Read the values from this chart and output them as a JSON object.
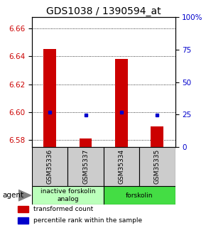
{
  "title": "GDS1038 / 1390594_at",
  "samples": [
    "GSM35336",
    "GSM35337",
    "GSM35334",
    "GSM35335"
  ],
  "red_values": [
    6.645,
    6.581,
    6.638,
    6.59
  ],
  "blue_values": [
    6.6,
    6.598,
    6.6,
    6.598
  ],
  "ylim_left": [
    6.575,
    6.668
  ],
  "ylim_right": [
    0,
    100
  ],
  "yticks_left": [
    6.58,
    6.6,
    6.62,
    6.64,
    6.66
  ],
  "yticks_right": [
    0,
    25,
    50,
    75,
    100
  ],
  "ytick_labels_right": [
    "0",
    "25",
    "50",
    "75",
    "100%"
  ],
  "groups": [
    {
      "label": "inactive forskolin\nanalog",
      "samples": [
        0,
        1
      ],
      "color": "#bbffbb"
    },
    {
      "label": "forskolin",
      "samples": [
        2,
        3
      ],
      "color": "#44dd44"
    }
  ],
  "bar_width": 0.35,
  "red_color": "#cc0000",
  "blue_color": "#0000cc",
  "agent_label": "agent",
  "legend_red": "transformed count",
  "legend_blue": "percentile rank within the sample",
  "plot_bg": "#ffffff",
  "label_bg": "#cccccc",
  "title_fontsize": 10,
  "tick_fontsize": 7.5,
  "sample_fontsize": 6.5,
  "group_fontsize": 6.5,
  "legend_fontsize": 6.5
}
